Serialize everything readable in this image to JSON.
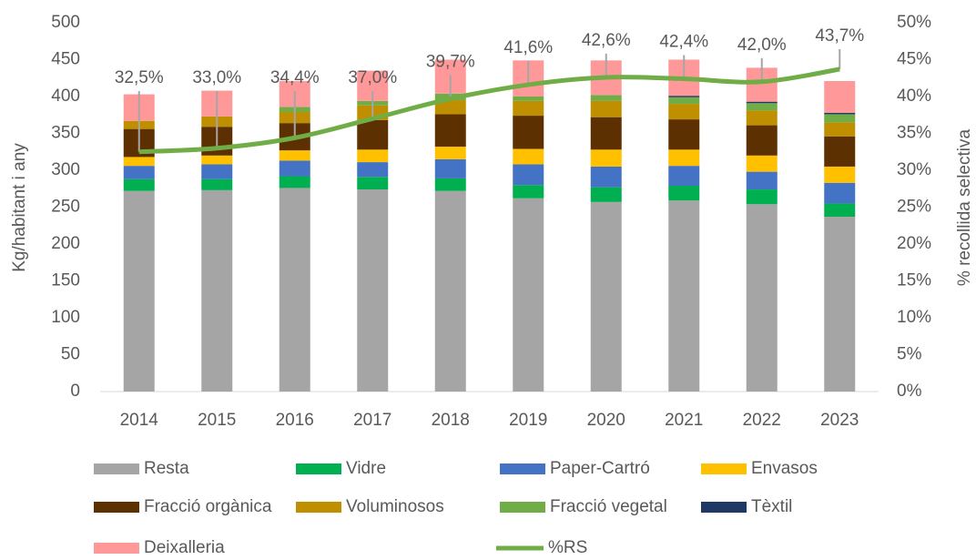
{
  "chart_data": {
    "type": "bar",
    "stacked": true,
    "categories": [
      "2014",
      "2015",
      "2016",
      "2017",
      "2018",
      "2019",
      "2020",
      "2021",
      "2022",
      "2023"
    ],
    "ylabel": "Kg/habitant i any",
    "y2label": "% recollida selectiva",
    "ylim": [
      0,
      500
    ],
    "yticks": [
      0,
      50,
      100,
      150,
      200,
      250,
      300,
      350,
      400,
      450,
      500
    ],
    "y2lim": [
      0,
      50
    ],
    "y2ticks": [
      {
        "value": 0,
        "label": "0%"
      },
      {
        "value": 5,
        "label": "5%"
      },
      {
        "value": 10,
        "label": "10%"
      },
      {
        "value": 15,
        "label": "15%"
      },
      {
        "value": 20,
        "label": "20%"
      },
      {
        "value": 25,
        "label": "25%"
      },
      {
        "value": 30,
        "label": "30%"
      },
      {
        "value": 35,
        "label": "35%"
      },
      {
        "value": 40,
        "label": "40%"
      },
      {
        "value": 45,
        "label": "45%"
      },
      {
        "value": 50,
        "label": "50%"
      }
    ],
    "grid": false,
    "legend": "bottom",
    "series": [
      {
        "name": "Resta",
        "color": "#a5a5a5",
        "values": [
          272,
          273,
          276,
          274,
          272,
          262,
          257,
          259,
          254,
          237
        ]
      },
      {
        "name": "Vidre",
        "color": "#00b050",
        "values": [
          16,
          15,
          16,
          17,
          17,
          18,
          20,
          20,
          20,
          18
        ]
      },
      {
        "name": "Paper-Cartró",
        "color": "#4472c4",
        "values": [
          18,
          20,
          21,
          20,
          26,
          28,
          28,
          27,
          24,
          28
        ]
      },
      {
        "name": "Envasos",
        "color": "#ffc000",
        "values": [
          12,
          12,
          14,
          17,
          17,
          21,
          23,
          22,
          22,
          22
        ]
      },
      {
        "name": "Fracció orgànica",
        "color": "#5c3000",
        "values": [
          38,
          39,
          37,
          40,
          44,
          45,
          44,
          41,
          41,
          41
        ]
      },
      {
        "name": "Voluminosos",
        "color": "#bf8f00",
        "values": [
          11,
          14,
          15,
          20,
          19,
          20,
          22,
          21,
          20,
          19
        ]
      },
      {
        "name": "Fracció vegetal",
        "color": "#70ad47",
        "values": [
          0,
          0,
          7,
          6,
          9,
          6,
          8,
          9,
          10,
          11
        ]
      },
      {
        "name": "Tèxtil",
        "color": "#1f3864",
        "values": [
          0,
          0,
          0,
          0,
          0,
          0,
          0,
          2,
          2,
          2
        ]
      },
      {
        "name": "Deixalleria",
        "color": "#ff9999",
        "values": [
          36,
          35,
          35,
          41,
          46,
          49,
          47,
          49,
          46,
          43
        ]
      },
      {
        "name": "%RS",
        "color": "#70ad47",
        "type": "line",
        "axis": "y2",
        "values": [
          32.5,
          33.0,
          34.4,
          37.0,
          39.7,
          41.6,
          42.6,
          42.4,
          42.0,
          43.7
        ],
        "value_labels": [
          "32,5%",
          "33,0%",
          "34,4%",
          "37,0%",
          "39,7%",
          "41,6%",
          "42,6%",
          "42,4%",
          "42,0%",
          "43,7%"
        ]
      }
    ]
  }
}
